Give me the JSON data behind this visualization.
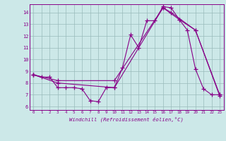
{
  "xlabel": "Windchill (Refroidissement éolien,°C)",
  "xlim": [
    -0.5,
    23.5
  ],
  "ylim": [
    5.7,
    14.7
  ],
  "yticks": [
    6,
    7,
    8,
    9,
    10,
    11,
    12,
    13,
    14
  ],
  "xticks": [
    0,
    1,
    2,
    3,
    4,
    5,
    6,
    7,
    8,
    9,
    10,
    11,
    12,
    13,
    14,
    15,
    16,
    17,
    18,
    19,
    20,
    21,
    22,
    23
  ],
  "bg_color": "#cce8e8",
  "line_color": "#880088",
  "grid_color": "#99bbbb",
  "series1_x": [
    0,
    1,
    2,
    3,
    4,
    5,
    6,
    7,
    8,
    9,
    10,
    11,
    12,
    13,
    14,
    15,
    16,
    17,
    18,
    19,
    20,
    21,
    22,
    23
  ],
  "series1_y": [
    8.7,
    8.5,
    8.5,
    7.6,
    7.6,
    7.6,
    7.5,
    6.5,
    6.4,
    7.6,
    7.6,
    9.3,
    12.1,
    11.0,
    13.3,
    13.3,
    14.5,
    14.4,
    13.4,
    12.5,
    9.2,
    7.5,
    7.0,
    7.0
  ],
  "series2_x": [
    0,
    3,
    10,
    16,
    17,
    20,
    23
  ],
  "series2_y": [
    8.7,
    8.2,
    8.2,
    14.4,
    14.0,
    12.5,
    6.9
  ],
  "series3_x": [
    0,
    3,
    10,
    16,
    18,
    20,
    23
  ],
  "series3_y": [
    8.7,
    8.0,
    7.6,
    14.4,
    13.4,
    12.5,
    7.0
  ]
}
